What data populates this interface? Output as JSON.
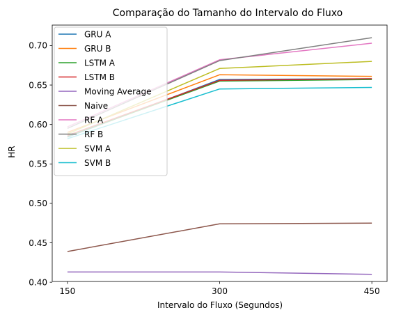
{
  "chart_data": {
    "type": "line",
    "title": "Comparação do Tamanho do Intervalo do Fluxo",
    "xlabel": "Intervalo do Fluxo (Segundos)",
    "ylabel": "HR",
    "x": [
      150,
      300,
      450
    ],
    "x_tick_labels": [
      "150",
      "300",
      "450"
    ],
    "xlim": [
      135,
      465
    ],
    "ylim": [
      0.401,
      0.726
    ],
    "y_ticks": [
      0.4,
      0.45,
      0.5,
      0.55,
      0.6,
      0.65,
      0.7
    ],
    "y_tick_labels": [
      "0.40",
      "0.45",
      "0.50",
      "0.55",
      "0.60",
      "0.65",
      "0.70"
    ],
    "grid": false,
    "legend_position": "top-left",
    "series": [
      {
        "name": "GRU A",
        "color": "#1f77b4",
        "values": [
          0.584,
          0.657,
          0.658
        ]
      },
      {
        "name": "GRU B",
        "color": "#ff7f0e",
        "values": [
          0.59,
          0.663,
          0.661
        ]
      },
      {
        "name": "LSTM A",
        "color": "#2ca02c",
        "values": [
          0.585,
          0.655,
          0.657
        ]
      },
      {
        "name": "LSTM B",
        "color": "#d62728",
        "values": [
          0.586,
          0.656,
          0.658
        ]
      },
      {
        "name": "Moving Average",
        "color": "#9467bd",
        "values": [
          0.413,
          0.413,
          0.41
        ]
      },
      {
        "name": "Naive",
        "color": "#8c564b",
        "values": [
          0.439,
          0.474,
          0.475
        ]
      },
      {
        "name": "RF A",
        "color": "#e377c2",
        "values": [
          0.597,
          0.682,
          0.703
        ]
      },
      {
        "name": "RF B",
        "color": "#7f7f7f",
        "values": [
          0.595,
          0.681,
          0.71
        ]
      },
      {
        "name": "SVM A",
        "color": "#bcbd22",
        "values": [
          0.588,
          0.671,
          0.68
        ]
      },
      {
        "name": "SVM B",
        "color": "#17becf",
        "values": [
          0.582,
          0.645,
          0.647
        ]
      }
    ]
  }
}
